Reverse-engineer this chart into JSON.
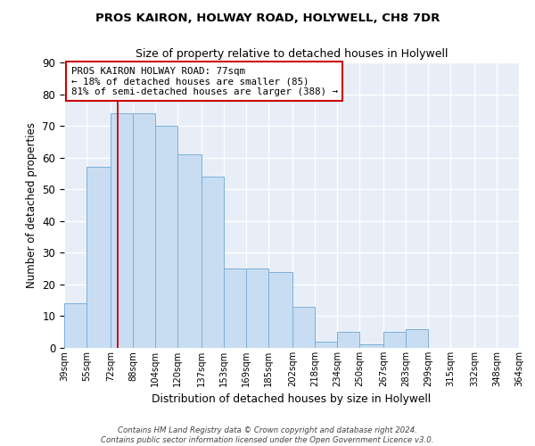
{
  "title": "PROS KAIRON, HOLWAY ROAD, HOLYWELL, CH8 7DR",
  "subtitle": "Size of property relative to detached houses in Holywell",
  "xlabel": "Distribution of detached houses by size in Holywell",
  "ylabel": "Number of detached properties",
  "bin_labels": [
    "39sqm",
    "55sqm",
    "72sqm",
    "88sqm",
    "104sqm",
    "120sqm",
    "137sqm",
    "153sqm",
    "169sqm",
    "185sqm",
    "202sqm",
    "218sqm",
    "234sqm",
    "250sqm",
    "267sqm",
    "283sqm",
    "299sqm",
    "315sqm",
    "332sqm",
    "348sqm",
    "364sqm"
  ],
  "bar_heights": [
    14,
    57,
    74,
    74,
    70,
    61,
    54,
    25,
    25,
    24,
    13,
    2,
    5,
    1,
    5,
    6,
    0,
    0,
    0,
    0,
    0
  ],
  "bar_color": "#c9ddf2",
  "bar_edge_color": "#7ab0d8",
  "property_size": 77,
  "property_label": "PROS KAIRON HOLWAY ROAD: 77sqm",
  "smaller_pct": "18% of detached houses are smaller (85)",
  "larger_pct": "81% of semi-detached houses are larger (388)",
  "vline_color": "#cc0000",
  "annotation_box_edge": "#cc0000",
  "ylim": [
    0,
    90
  ],
  "yticks": [
    0,
    10,
    20,
    30,
    40,
    50,
    60,
    70,
    80,
    90
  ],
  "footer1": "Contains HM Land Registry data © Crown copyright and database right 2024.",
  "footer2": "Contains public sector information licensed under the Open Government Licence v3.0.",
  "bin_edges": [
    39,
    55,
    72,
    88,
    104,
    120,
    137,
    153,
    169,
    185,
    202,
    218,
    234,
    250,
    267,
    283,
    299,
    315,
    332,
    348,
    364
  ]
}
